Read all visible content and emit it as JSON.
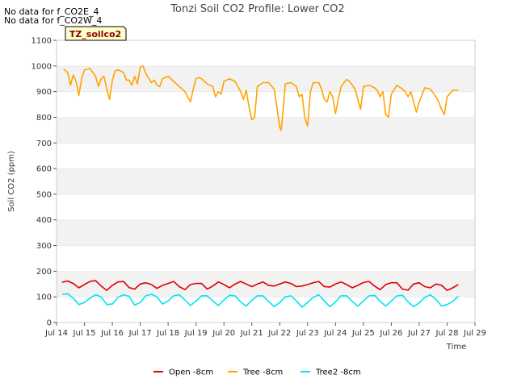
{
  "no_data_notes": [
    "No data for f_CO2E_4",
    "No data for f_CO2W_4"
  ],
  "chart_data": {
    "type": "line",
    "title": "Tonzi Soil CO2 Profile: Lower CO2",
    "xlabel": "Time",
    "ylabel": "Soil CO2 (ppm)",
    "badge": "TZ_soilco2",
    "xlim": [
      14,
      29
    ],
    "ylim": [
      0,
      1100
    ],
    "x_ticks": [
      14,
      15,
      16,
      17,
      18,
      19,
      20,
      21,
      22,
      23,
      24,
      25,
      26,
      27,
      28,
      29
    ],
    "x_tick_labels": [
      "Jul 14",
      "Jul 15",
      "Jul 16",
      "Jul 17",
      "Jul 18",
      "Jul 19",
      "Jul 20",
      "Jul 21",
      "Jul 22",
      "Jul 23",
      "Jul 24",
      "Jul 25",
      "Jul 26",
      "Jul 27",
      "Jul 28",
      "Jul 29"
    ],
    "y_ticks": [
      0,
      100,
      200,
      300,
      400,
      500,
      600,
      700,
      800,
      900,
      1000,
      1100
    ],
    "y_tick_labels": [
      "0",
      "100",
      "200",
      "300",
      "400",
      "500",
      "600",
      "700",
      "800",
      "900",
      "1000",
      "1100"
    ],
    "grid": "horizontal bands",
    "legend_position": "bottom",
    "series": [
      {
        "name": "Open -8cm",
        "color": "#dd0000",
        "x": [
          14.2,
          14.4,
          14.6,
          14.8,
          15.0,
          15.2,
          15.4,
          15.6,
          15.8,
          16.0,
          16.2,
          16.4,
          16.6,
          16.8,
          17.0,
          17.2,
          17.4,
          17.6,
          17.8,
          18.0,
          18.2,
          18.4,
          18.6,
          18.8,
          19.0,
          19.2,
          19.4,
          19.6,
          19.8,
          20.0,
          20.2,
          20.4,
          20.6,
          20.8,
          21.0,
          21.2,
          21.4,
          21.6,
          21.8,
          22.0,
          22.2,
          22.4,
          22.6,
          22.8,
          23.0,
          23.2,
          23.4,
          23.6,
          23.8,
          24.0,
          24.2,
          24.4,
          24.6,
          24.8,
          25.0,
          25.2,
          25.4,
          25.6,
          25.8,
          26.0,
          26.2,
          26.4,
          26.6,
          26.8,
          27.0,
          27.2,
          27.4,
          27.6,
          27.8,
          28.0,
          28.2,
          28.4
        ],
        "values": [
          157,
          162,
          152,
          135,
          148,
          160,
          163,
          142,
          125,
          145,
          158,
          160,
          136,
          130,
          150,
          155,
          148,
          133,
          145,
          152,
          160,
          140,
          128,
          148,
          152,
          152,
          130,
          142,
          158,
          148,
          135,
          150,
          160,
          150,
          140,
          150,
          158,
          145,
          142,
          150,
          158,
          152,
          140,
          142,
          148,
          155,
          160,
          140,
          138,
          150,
          158,
          148,
          135,
          145,
          156,
          160,
          142,
          128,
          148,
          155,
          155,
          130,
          126,
          150,
          155,
          140,
          135,
          150,
          145,
          125,
          135,
          148
        ]
      },
      {
        "name": "Tree -8cm",
        "color": "#ffa500",
        "x": [
          14.25,
          14.4,
          14.5,
          14.6,
          14.7,
          14.8,
          14.9,
          15.0,
          15.2,
          15.4,
          15.5,
          15.6,
          15.7,
          15.8,
          15.9,
          16.0,
          16.1,
          16.2,
          16.4,
          16.5,
          16.6,
          16.7,
          16.8,
          16.9,
          17.0,
          17.1,
          17.2,
          17.4,
          17.5,
          17.6,
          17.7,
          17.8,
          18.0,
          18.1,
          18.2,
          18.4,
          18.6,
          18.8,
          18.9,
          19.0,
          19.1,
          19.2,
          19.4,
          19.6,
          19.7,
          19.8,
          19.9,
          20.0,
          20.2,
          20.4,
          20.5,
          20.6,
          20.7,
          20.8,
          20.9,
          21.0,
          21.1,
          21.2,
          21.4,
          21.6,
          21.8,
          21.9,
          22.0,
          22.05,
          22.1,
          22.2,
          22.4,
          22.6,
          22.7,
          22.8,
          22.9,
          23.0,
          23.1,
          23.2,
          23.4,
          23.5,
          23.6,
          23.7,
          23.8,
          23.9,
          24.0,
          24.1,
          24.2,
          24.4,
          24.5,
          24.6,
          24.7,
          24.8,
          24.9,
          25.0,
          25.2,
          25.4,
          25.5,
          25.6,
          25.7,
          25.8,
          25.9,
          26.0,
          26.2,
          26.4,
          26.5,
          26.6,
          26.7,
          26.8,
          26.9,
          27.0,
          27.2,
          27.4,
          27.5,
          27.6,
          27.7,
          27.8,
          27.9,
          28.0,
          28.2,
          28.4
        ],
        "values": [
          988,
          975,
          925,
          965,
          940,
          885,
          950,
          985,
          990,
          960,
          920,
          950,
          960,
          910,
          870,
          945,
          980,
          985,
          975,
          945,
          945,
          925,
          960,
          930,
          995,
          1000,
          970,
          935,
          945,
          925,
          920,
          950,
          960,
          950,
          940,
          920,
          900,
          860,
          910,
          950,
          955,
          950,
          930,
          920,
          880,
          900,
          890,
          940,
          950,
          940,
          920,
          900,
          870,
          905,
          840,
          790,
          800,
          920,
          935,
          935,
          910,
          840,
          760,
          750,
          800,
          930,
          935,
          920,
          880,
          890,
          800,
          765,
          900,
          935,
          935,
          910,
          870,
          860,
          900,
          880,
          815,
          870,
          920,
          948,
          940,
          925,
          910,
          870,
          830,
          920,
          925,
          915,
          905,
          880,
          900,
          810,
          800,
          890,
          925,
          910,
          900,
          880,
          900,
          860,
          820,
          860,
          915,
          910,
          895,
          880,
          860,
          830,
          810,
          880,
          905,
          905
        ]
      },
      {
        "name": "Tree2 -8cm",
        "color": "#00e5ee",
        "x": [
          14.2,
          14.4,
          14.6,
          14.8,
          15.0,
          15.2,
          15.4,
          15.6,
          15.8,
          16.0,
          16.2,
          16.4,
          16.6,
          16.8,
          17.0,
          17.2,
          17.4,
          17.6,
          17.8,
          18.0,
          18.2,
          18.4,
          18.6,
          18.8,
          19.0,
          19.2,
          19.4,
          19.6,
          19.8,
          20.0,
          20.2,
          20.4,
          20.6,
          20.8,
          21.0,
          21.2,
          21.4,
          21.6,
          21.8,
          22.0,
          22.2,
          22.4,
          22.6,
          22.8,
          23.0,
          23.2,
          23.4,
          23.6,
          23.8,
          24.0,
          24.2,
          24.4,
          24.6,
          24.8,
          25.0,
          25.2,
          25.4,
          25.6,
          25.8,
          26.0,
          26.2,
          26.4,
          26.6,
          26.8,
          27.0,
          27.2,
          27.4,
          27.6,
          27.8,
          28.0,
          28.2,
          28.4
        ],
        "values": [
          110,
          112,
          95,
          70,
          78,
          95,
          108,
          100,
          70,
          72,
          98,
          108,
          102,
          68,
          78,
          104,
          110,
          100,
          72,
          84,
          104,
          108,
          88,
          66,
          84,
          104,
          104,
          84,
          66,
          88,
          106,
          104,
          80,
          64,
          86,
          104,
          104,
          82,
          62,
          78,
          100,
          104,
          84,
          60,
          78,
          98,
          108,
          84,
          62,
          80,
          104,
          104,
          82,
          64,
          84,
          104,
          106,
          82,
          64,
          84,
          104,
          106,
          80,
          62,
          76,
          98,
          108,
          90,
          64,
          70,
          82,
          102
        ]
      }
    ]
  }
}
